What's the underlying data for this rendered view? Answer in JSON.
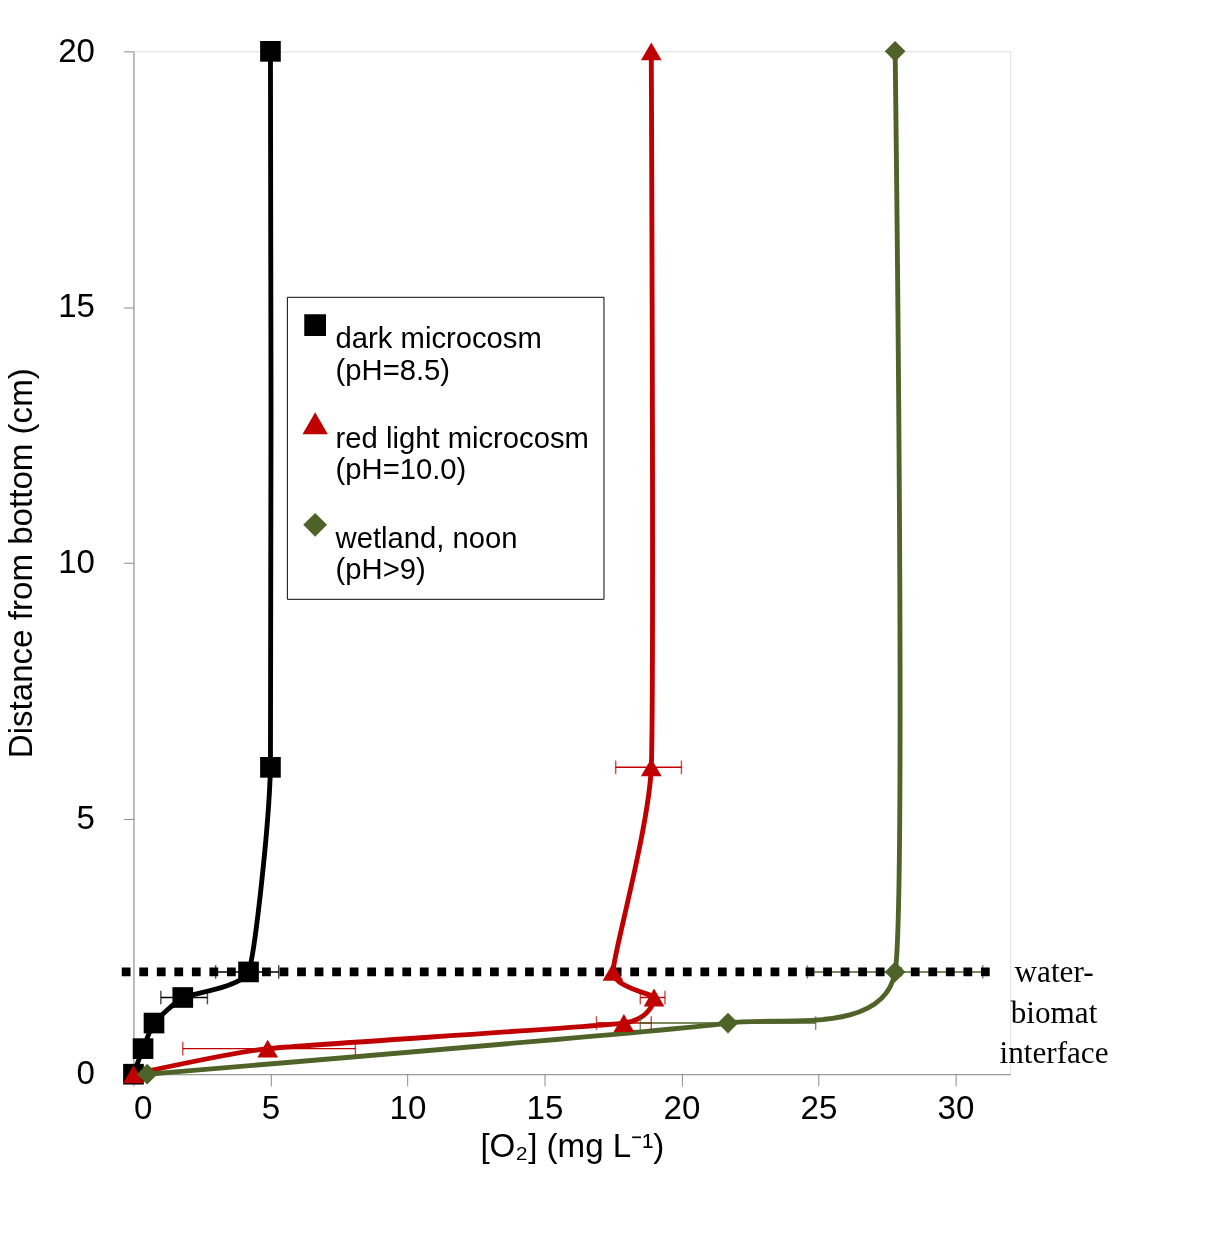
{
  "chart_data": {
    "type": "line",
    "xlabel": "[O₂] (mg L⁻¹)",
    "ylabel": "Distance from bottom (cm)",
    "xlim": [
      0,
      32
    ],
    "xticks": [
      0,
      5,
      10,
      15,
      20,
      25,
      30
    ],
    "ylim": [
      0,
      20
    ],
    "yticks": [
      0,
      5,
      10,
      15,
      20
    ],
    "grid": false,
    "legend": "top left",
    "line_style": "solid",
    "series": [
      {
        "name": "dark microcosm (pH=8.5)",
        "color": "#000000",
        "marker": "square",
        "x": [
          0,
          0.35,
          0.75,
          1.8,
          4.2,
          5,
          5
        ],
        "values": [
          0,
          0.5,
          1,
          1.5,
          2,
          6,
          20
        ],
        "xerrors": [
          null,
          null,
          null,
          [
            1.0,
            2.7
          ],
          [
            3.0,
            5.3
          ],
          null,
          null
        ]
      },
      {
        "name": "red light microcosm (pH=10.0)",
        "color": "#c00000",
        "marker": "triangle",
        "x": [
          0,
          4.9,
          17.9,
          19.0,
          17.5,
          18.9,
          18.9
        ],
        "values": [
          0,
          0.5,
          1,
          1.5,
          2,
          6,
          20
        ],
        "xerrors": [
          null,
          [
            1.8,
            8.1
          ],
          [
            16.9,
            18.9
          ],
          [
            18.5,
            19.4
          ],
          null,
          [
            17.6,
            20.0
          ],
          null
        ]
      },
      {
        "name": "wetland, noon (pH>9)",
        "color": "#4f6228",
        "marker": "diamond",
        "x": [
          0.5,
          21.7,
          27.8,
          27.8
        ],
        "values": [
          0,
          1,
          2,
          20
        ],
        "xerrors": [
          null,
          [
            18.5,
            24.9
          ],
          [
            24.6,
            31.0
          ],
          null
        ]
      }
    ],
    "ref_lines": [
      {
        "axis": "y",
        "value": 2,
        "label": "water-biomat interface",
        "color": "#000000",
        "line_style": "dotted"
      }
    ]
  }
}
